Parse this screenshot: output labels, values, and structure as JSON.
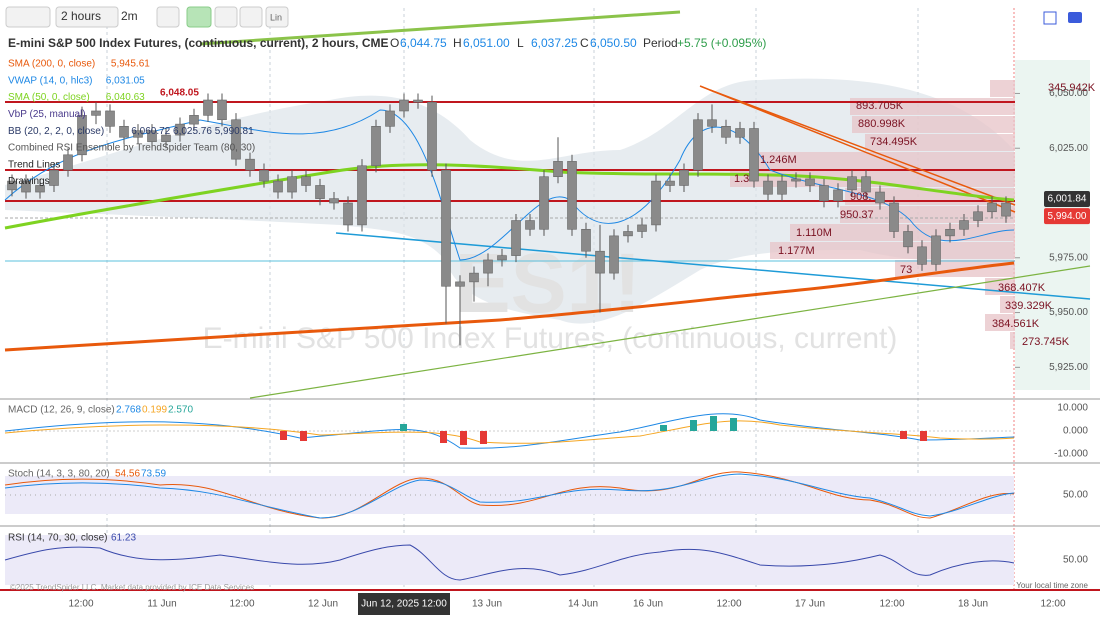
{
  "toolbar": {
    "interval": "2 hours",
    "interval_short": "2m",
    "scale": "Lin"
  },
  "header": {
    "title": "E-mini S&P 500 Index Futures, (continuous, current), 2 hours, CME",
    "open_label": "O",
    "open": "6,044.75",
    "high_label": "H",
    "high": "6,051.00",
    "low_label": "L",
    "low": "6,037.25",
    "close_label": "C",
    "close": "6,050.50",
    "period_label": "Period",
    "period": "+5.75 (+0.095%)"
  },
  "indicators": [
    {
      "label": "SMA (200, 0, close)",
      "value": "5,945.61",
      "color": "#e8590c"
    },
    {
      "label": "VWAP (14, 0, hlc3)",
      "value": "6,031.05",
      "color": "#1e88e5"
    },
    {
      "label": "SMA (50, 0, close)",
      "value": "6,040.63",
      "color": "#7ed321"
    },
    {
      "label": "VbP (25, manual)",
      "color": "#4a3a8c"
    },
    {
      "label": "BB (20, 2, 2, 0, close)",
      "value": "6,060.72 6,025.76 5,990.81",
      "color": "#2b3a67"
    },
    {
      "label": "Combined RSI Ensemble by TrendSpider Team (80, 30)",
      "color": "#555555"
    },
    {
      "label": "Trend Lines",
      "color": "#222222"
    },
    {
      "label": "Drawings",
      "color": "#222222"
    }
  ],
  "chart_data": {
    "type": "candlestick",
    "color": "#8a8a8a",
    "ylim": [
      5911,
      6089
    ],
    "yticks": [
      {
        "value": 6050,
        "label": "6,050.00"
      },
      {
        "value": 6025,
        "label": "6,025.00"
      },
      {
        "value": 5975,
        "label": "5,975.00"
      },
      {
        "value": 5950,
        "label": "5,950.00"
      },
      {
        "value": 5925,
        "label": "5,925.00"
      }
    ],
    "price_tags": [
      {
        "value": 6001.84,
        "label": "6,001.84"
      },
      {
        "value": 5994,
        "label": "5,994.00"
      }
    ],
    "high_annotation": "6,048.05",
    "watermark_symbol": "ES1!",
    "watermark_name": "E-mini S&P 500 Index Futures, (continuous, current)",
    "volume_profile": [
      "345.942K",
      "893.705K",
      "880.998K",
      "734.495K",
      "1.246M",
      "1.3",
      "908.",
      "950.37",
      "1.110M",
      "1.177M",
      "73",
      "368.407K",
      "339.329K",
      "384.561K",
      "273.745K"
    ],
    "candles": [
      [
        6006,
        6013,
        6003,
        6010
      ],
      [
        6010,
        6013,
        6002,
        6005
      ],
      [
        6005,
        6011,
        6002,
        6008
      ],
      [
        6008,
        6018,
        6005,
        6015
      ],
      [
        6015,
        6025,
        6012,
        6022
      ],
      [
        6022,
        6044,
        6019,
        6040
      ],
      [
        6040,
        6046,
        6036,
        6042
      ],
      [
        6042,
        6045,
        6032,
        6035
      ],
      [
        6035,
        6038,
        6027,
        6030
      ],
      [
        6030,
        6036,
        6027,
        6033
      ],
      [
        6033,
        6036,
        6025,
        6028
      ],
      [
        6028,
        6034,
        6025,
        6031
      ],
      [
        6031,
        6039,
        6028,
        6036
      ],
      [
        6036,
        6043,
        6033,
        6040
      ],
      [
        6040,
        6050,
        6037,
        6047
      ],
      [
        6047,
        6050,
        6035,
        6038
      ],
      [
        6038,
        6041,
        6017,
        6020
      ],
      [
        6020,
        6023,
        6012,
        6015
      ],
      [
        6015,
        6018,
        6007,
        6010
      ],
      [
        6010,
        6013,
        6002,
        6005
      ],
      [
        6005,
        6015,
        6002,
        6012
      ],
      [
        6012,
        6015,
        6005,
        6008
      ],
      [
        6008,
        6011,
        5999,
        6002
      ],
      [
        6002,
        6005,
        5997,
        6000
      ],
      [
        6000,
        6003,
        5987,
        5990
      ],
      [
        5990,
        6020,
        5987,
        6017
      ],
      [
        6017,
        6038,
        6014,
        6035
      ],
      [
        6035,
        6045,
        6032,
        6042
      ],
      [
        6042,
        6050,
        6039,
        6047
      ],
      [
        6047,
        6050,
        6043,
        6046
      ],
      [
        6046,
        6049,
        6012,
        6015
      ],
      [
        6015,
        6018,
        5945,
        5962
      ],
      [
        5962,
        5967,
        5935,
        5964
      ],
      [
        5964,
        5971,
        5955,
        5968
      ],
      [
        5968,
        5977,
        5962,
        5974
      ],
      [
        5974,
        5979,
        5971,
        5976
      ],
      [
        5976,
        5995,
        5973,
        5992
      ],
      [
        5992,
        5995,
        5985,
        5988
      ],
      [
        5988,
        6015,
        5985,
        6012
      ],
      [
        6012,
        6030,
        6009,
        6019
      ],
      [
        6019,
        6022,
        5985,
        5988
      ],
      [
        5988,
        5991,
        5975,
        5978
      ],
      [
        5978,
        5990,
        5950,
        5968
      ],
      [
        5968,
        5988,
        5965,
        5985
      ],
      [
        5985,
        5990,
        5982,
        5987
      ],
      [
        5987,
        5993,
        5984,
        5990
      ],
      [
        5990,
        6013,
        5987,
        6010
      ],
      [
        6010,
        6013,
        6005,
        6008
      ],
      [
        6008,
        6018,
        6005,
        6015
      ],
      [
        6015,
        6041,
        6012,
        6038
      ],
      [
        6038,
        6045,
        6032,
        6035
      ],
      [
        6035,
        6038,
        6027,
        6030
      ],
      [
        6030,
        6037,
        6027,
        6034
      ],
      [
        6034,
        6037,
        6007,
        6010
      ],
      [
        6010,
        6013,
        6001,
        6004
      ],
      [
        6004,
        6013,
        6001,
        6010
      ],
      [
        6010,
        6014,
        6007,
        6011
      ],
      [
        6011,
        6014,
        6005,
        6008
      ],
      [
        6008,
        6011,
        5998,
        6001
      ],
      [
        6001,
        6009,
        5998,
        6006
      ],
      [
        6006,
        6015,
        6003,
        6012
      ],
      [
        6012,
        6015,
        6002,
        6005
      ],
      [
        6005,
        6008,
        5997,
        6000
      ],
      [
        6000,
        6003,
        5984,
        5987
      ],
      [
        5987,
        5990,
        5977,
        5980
      ],
      [
        5980,
        5983,
        5969,
        5972
      ],
      [
        5972,
        5988,
        5969,
        5985
      ],
      [
        5985,
        5991,
        5982,
        5988
      ],
      [
        5988,
        5995,
        5985,
        5992
      ],
      [
        5992,
        5999,
        5989,
        5996
      ],
      [
        5996,
        6003,
        5993,
        6000
      ],
      [
        6000,
        6003,
        5991,
        5994
      ]
    ]
  },
  "x_axis_labels": [
    "12:00",
    "11 Jun",
    "12:00",
    "12 Jun",
    "Jun 12, 2025 12:00",
    "13 Jun",
    "14 Jun",
    "16 Jun",
    "12:00",
    "17 Jun",
    "12:00",
    "18 Jun",
    "12:00"
  ],
  "panels": {
    "macd": {
      "label": "MACD (12, 26, 9, close)",
      "values": [
        "2.768",
        "0.199",
        "2.570"
      ],
      "axis": [
        "10.000",
        "0.000",
        "-10.000"
      ]
    },
    "stoch": {
      "label": "Stoch (14, 3, 3, 80, 20)",
      "values": [
        "54.56",
        "73.59"
      ],
      "axis": [
        "50.00"
      ]
    },
    "rsi": {
      "label": "RSI (14, 70, 30, close)",
      "values": [
        "61.23"
      ],
      "axis": [
        "50.00"
      ]
    }
  },
  "footer": {
    "copyright": "©2025 TrendSpider LLC. Market data provided by ICE Data Services",
    "timezone": "Your local time zone"
  }
}
